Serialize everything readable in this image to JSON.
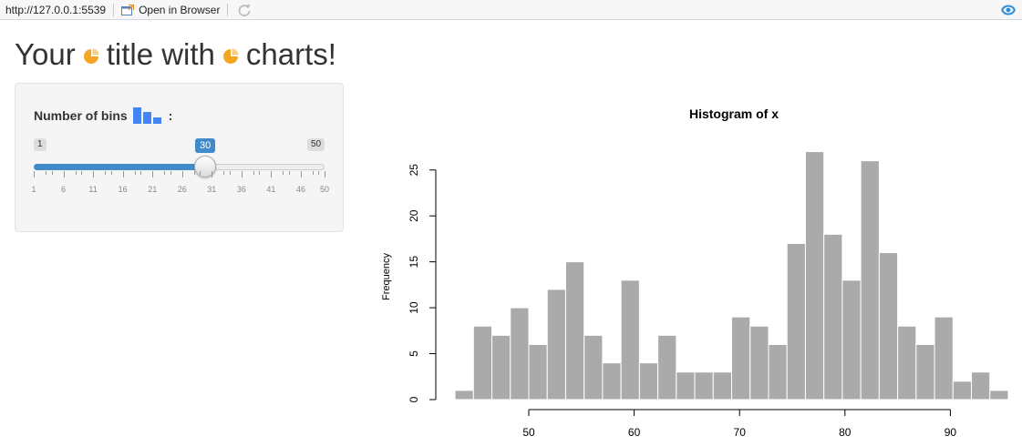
{
  "toolbar": {
    "url": "http://127.0.0.1:5539",
    "open_label": "Open in Browser"
  },
  "title": {
    "before": "Your",
    "middle": "title with",
    "after": "charts!"
  },
  "slider": {
    "label": "Number of bins",
    "suffix": ":",
    "min": 1,
    "max": 50,
    "value": 30,
    "tick_labels": [
      "1",
      "6",
      "11",
      "16",
      "21",
      "26",
      "31",
      "36",
      "41",
      "46",
      "50"
    ]
  },
  "colors": {
    "accent": "#428bca",
    "icon_orange": "#f4a623",
    "icon_blue": "#4285f4",
    "bar_fill": "#aaaaaa"
  },
  "chart_data": {
    "type": "bar",
    "title": "Histogram of x",
    "xlabel": "",
    "ylabel": "Frequency",
    "bin_edges_start": 43,
    "bin_width": 1.75,
    "values": [
      1,
      8,
      7,
      10,
      6,
      12,
      15,
      7,
      4,
      13,
      4,
      7,
      3,
      3,
      3,
      9,
      8,
      6,
      17,
      27,
      18,
      13,
      26,
      16,
      8,
      6,
      9,
      2,
      3,
      1
    ],
    "xlim": [
      42,
      97
    ],
    "ylim": [
      0,
      27
    ],
    "xticks": [
      50,
      60,
      70,
      80,
      90
    ],
    "yticks": [
      0,
      5,
      10,
      15,
      20,
      25
    ],
    "grid": false
  }
}
